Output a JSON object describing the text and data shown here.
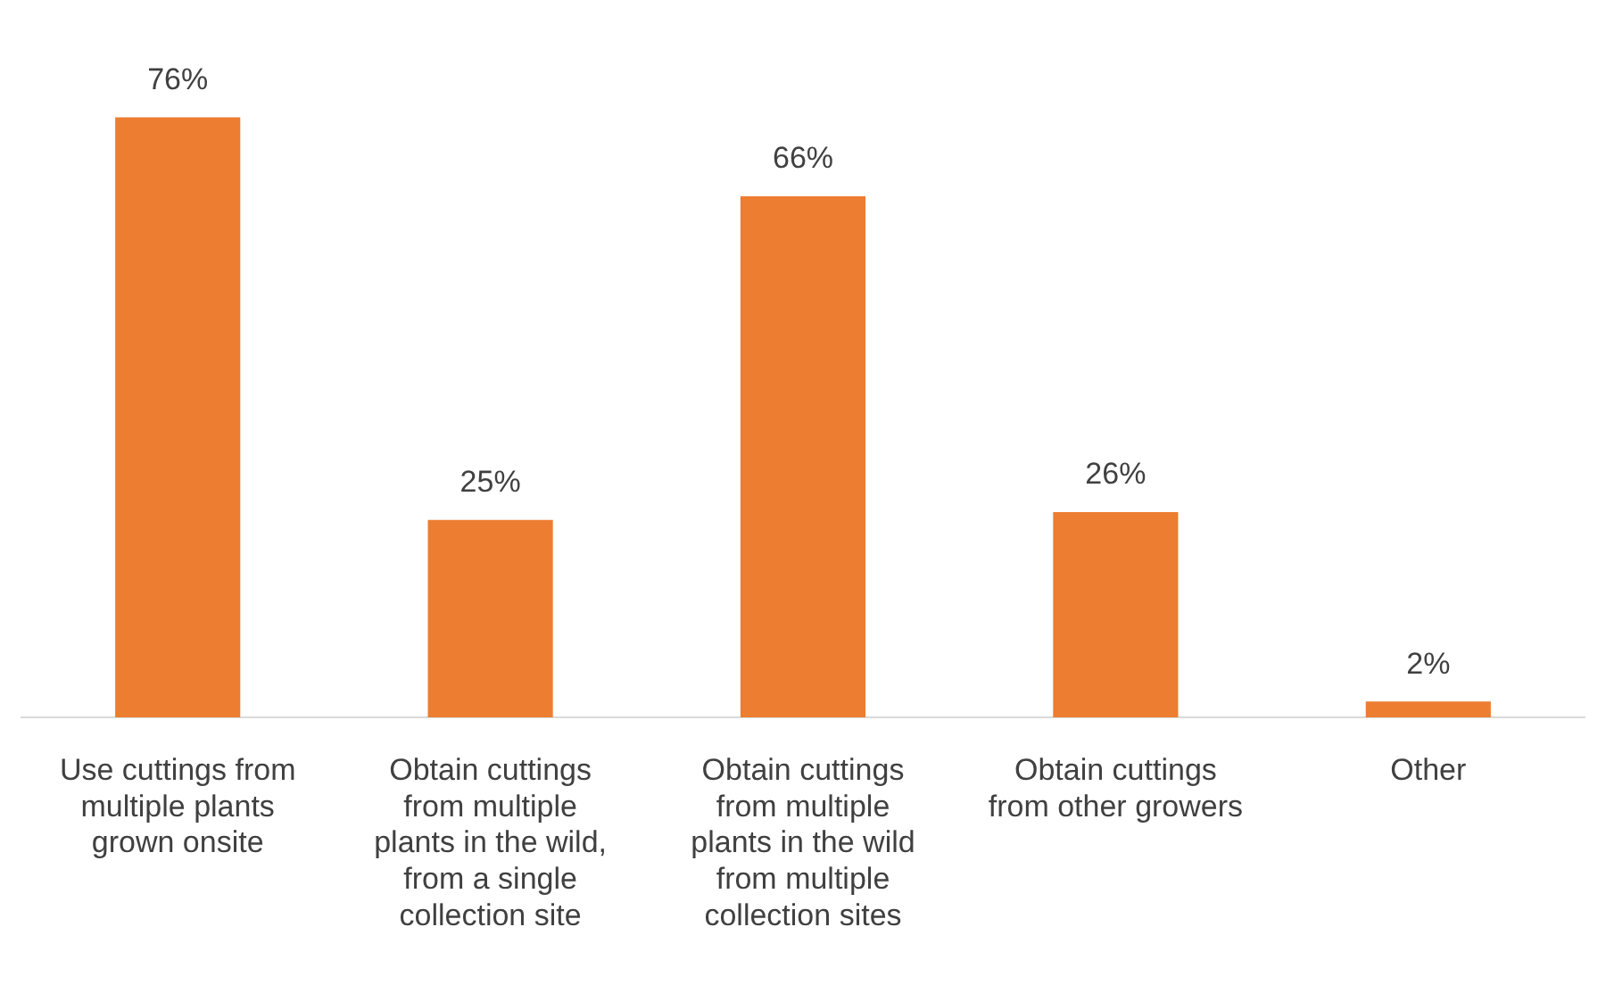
{
  "chart_data": {
    "type": "bar",
    "categories": [
      "Use cuttings from multiple plants grown onsite",
      "Obtain cuttings from multiple plants in the wild, from a single collection site",
      "Obtain cuttings from multiple plants in the wild from multiple collection sites",
      "Obtain cuttings from other growers",
      "Other"
    ],
    "values": [
      76,
      25,
      66,
      26,
      2
    ],
    "value_labels": [
      "76%",
      "25%",
      "66%",
      "26%",
      "2%"
    ],
    "color": "#ed7d31",
    "grid": false,
    "legend": false
  }
}
